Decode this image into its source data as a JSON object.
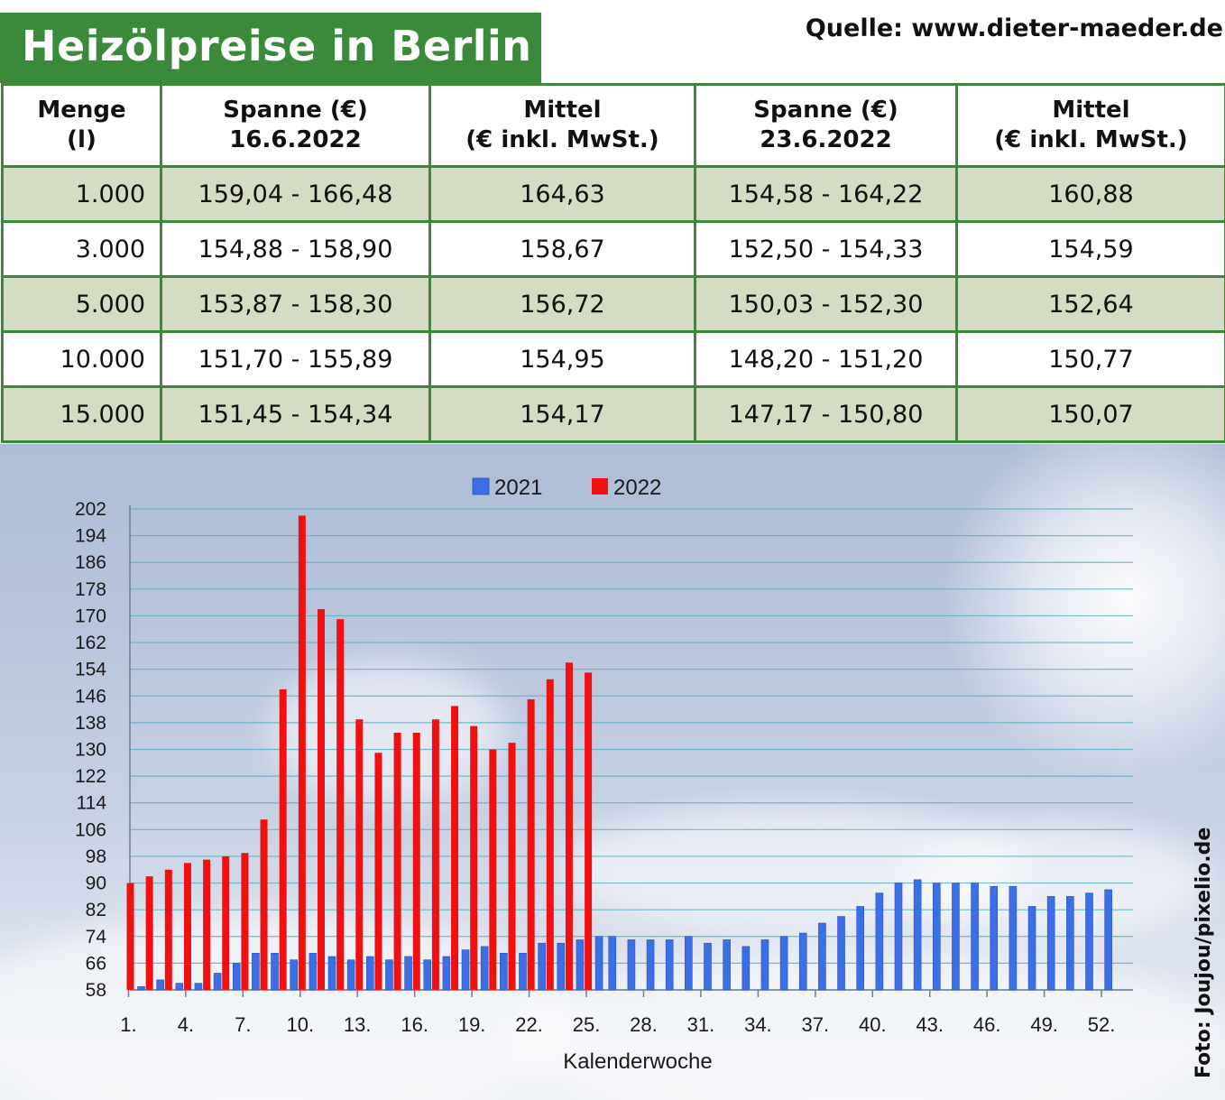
{
  "title": "Heizölpreise in Berlin",
  "source": "Quelle: www.dieter-maeder.de",
  "photo_credit": "Foto: Joujou/pixelio.de",
  "colors": {
    "green": "#3b8a3b",
    "shade_row": "#d4dcc4",
    "series_2021": "#3c6ee6",
    "series_2022": "#f01010"
  },
  "table": {
    "headers": [
      [
        "Menge",
        "(l)"
      ],
      [
        "Spanne (€)",
        "16.6.2022"
      ],
      [
        "Mittel",
        "(€ inkl. MwSt.)"
      ],
      [
        "Spanne (€)",
        "23.6.2022"
      ],
      [
        "Mittel",
        "(€ inkl. MwSt.)"
      ]
    ],
    "rows": [
      [
        "1.000",
        "159,04 - 166,48",
        "164,63",
        "154,58 - 164,22",
        "160,88"
      ],
      [
        "3.000",
        "154,88 - 158,90",
        "158,67",
        "152,50 - 154,33",
        "154,59"
      ],
      [
        "5.000",
        "153,87 - 158,30",
        "156,72",
        "150,03 - 152,30",
        "152,64"
      ],
      [
        "10.000",
        "151,70 - 155,89",
        "154,95",
        "148,20 - 151,20",
        "150,77"
      ],
      [
        "15.000",
        "151,45 - 154,34",
        "154,17",
        "147,17 - 150,80",
        "150,07"
      ]
    ]
  },
  "chart_data": {
    "type": "bar",
    "xlabel": "Kalenderwoche",
    "ylabel": "",
    "ylim": [
      58,
      202
    ],
    "yticks": [
      58,
      66,
      74,
      82,
      90,
      98,
      106,
      114,
      122,
      130,
      138,
      146,
      154,
      162,
      170,
      178,
      186,
      194,
      202
    ],
    "xtick_labels": [
      "1.",
      "4.",
      "7.",
      "10.",
      "13.",
      "16.",
      "19.",
      "22.",
      "25.",
      "28.",
      "31.",
      "34.",
      "37.",
      "40.",
      "43.",
      "46.",
      "49.",
      "52."
    ],
    "xtick_weeks": [
      1,
      4,
      7,
      10,
      13,
      16,
      19,
      22,
      25,
      28,
      31,
      34,
      37,
      40,
      43,
      46,
      49,
      52
    ],
    "grid": true,
    "legend": "top",
    "series": [
      {
        "name": "2021",
        "values": [
          59,
          61,
          60,
          60,
          63,
          66,
          69,
          69,
          67,
          69,
          68,
          67,
          68,
          67,
          68,
          67,
          68,
          70,
          71,
          69,
          69,
          72,
          72,
          73,
          74,
          74,
          73,
          73,
          73,
          74,
          72,
          73,
          71,
          73,
          74,
          75,
          78,
          80,
          83,
          87,
          90,
          91,
          90,
          90,
          90,
          89,
          89,
          83,
          86,
          86,
          87,
          88
        ]
      },
      {
        "name": "2022",
        "values": [
          90,
          92,
          94,
          96,
          97,
          98,
          99,
          109,
          148,
          200,
          172,
          169,
          139,
          129,
          135,
          135,
          139,
          143,
          137,
          130,
          132,
          145,
          151,
          156,
          153
        ]
      }
    ]
  }
}
